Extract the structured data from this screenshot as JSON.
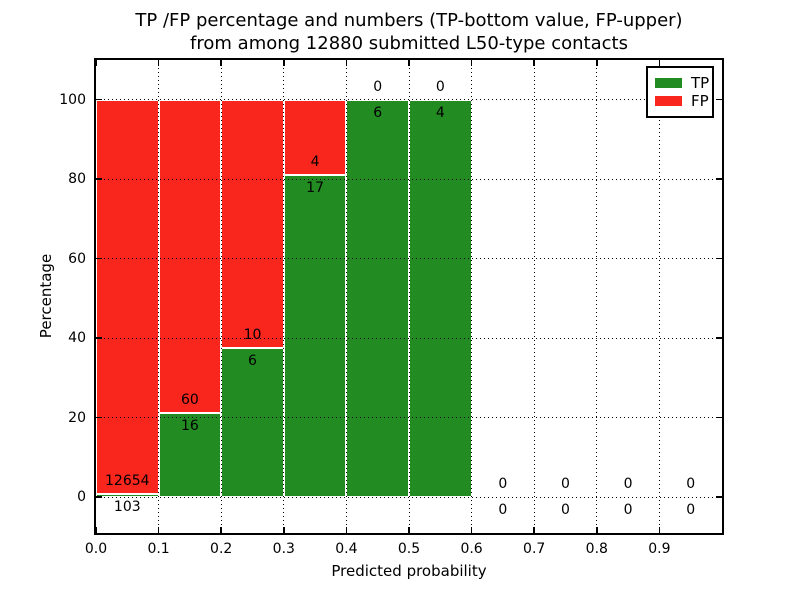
{
  "title": {
    "line1": "TP /FP percentage and numbers (TP-bottom value, FP-upper)",
    "line2": "from among 12880 submitted L50-type contacts"
  },
  "axes": {
    "xlabel": "Predicted probability",
    "ylabel": "Percentage",
    "x_ticks": [
      {
        "label": "0.0",
        "v": 0.0
      },
      {
        "label": "0.1",
        "v": 0.1
      },
      {
        "label": "0.2",
        "v": 0.2
      },
      {
        "label": "0.3",
        "v": 0.3
      },
      {
        "label": "0.4",
        "v": 0.4
      },
      {
        "label": "0.5",
        "v": 0.5
      },
      {
        "label": "0.6",
        "v": 0.6
      },
      {
        "label": "0.7",
        "v": 0.7
      },
      {
        "label": "0.8",
        "v": 0.8
      },
      {
        "label": "0.9",
        "v": 0.9
      }
    ],
    "y_ticks": [
      {
        "label": "0",
        "v": 0
      },
      {
        "label": "20",
        "v": 20
      },
      {
        "label": "40",
        "v": 40
      },
      {
        "label": "60",
        "v": 60
      },
      {
        "label": "80",
        "v": 80
      },
      {
        "label": "100",
        "v": 100
      }
    ]
  },
  "colors": {
    "tp": "#228b22",
    "fp": "#f9261d",
    "grid": "#000000",
    "frame": "#000000",
    "background": "#ffffff"
  },
  "legend": {
    "items": [
      {
        "label": "TP",
        "color": "#228b22"
      },
      {
        "label": "FP",
        "color": "#f9261d"
      }
    ],
    "position": "upper right"
  },
  "chart_data": {
    "type": "bar",
    "stacked": true,
    "title": "TP /FP percentage and numbers (TP-bottom value, FP-upper) from among 12880 submitted L50-type contacts",
    "xlabel": "Predicted probability",
    "ylabel": "Percentage",
    "xlim": [
      0.0,
      1.0
    ],
    "ylim": [
      -9,
      110
    ],
    "grid": true,
    "legend_position": "upper right",
    "total_submitted": 12880,
    "bin_width": 0.1,
    "bins": [
      {
        "x0": 0.0,
        "x1": 0.1,
        "tp_count": 103,
        "fp_count": 12654,
        "tp_pct": 0.8,
        "fp_pct": 99.2
      },
      {
        "x0": 0.1,
        "x1": 0.2,
        "tp_count": 16,
        "fp_count": 60,
        "tp_pct": 21.1,
        "fp_pct": 78.9
      },
      {
        "x0": 0.2,
        "x1": 0.3,
        "tp_count": 6,
        "fp_count": 10,
        "tp_pct": 37.5,
        "fp_pct": 62.5
      },
      {
        "x0": 0.3,
        "x1": 0.4,
        "tp_count": 17,
        "fp_count": 4,
        "tp_pct": 81.0,
        "fp_pct": 19.0
      },
      {
        "x0": 0.4,
        "x1": 0.5,
        "tp_count": 6,
        "fp_count": 0,
        "tp_pct": 100,
        "fp_pct": 0
      },
      {
        "x0": 0.5,
        "x1": 0.6,
        "tp_count": 4,
        "fp_count": 0,
        "tp_pct": 100,
        "fp_pct": 0
      },
      {
        "x0": 0.6,
        "x1": 0.7,
        "tp_count": 0,
        "fp_count": 0,
        "tp_pct": 0,
        "fp_pct": 0
      },
      {
        "x0": 0.7,
        "x1": 0.8,
        "tp_count": 0,
        "fp_count": 0,
        "tp_pct": 0,
        "fp_pct": 0
      },
      {
        "x0": 0.8,
        "x1": 0.9,
        "tp_count": 0,
        "fp_count": 0,
        "tp_pct": 0,
        "fp_pct": 0
      },
      {
        "x0": 0.9,
        "x1": 1.0,
        "tp_count": 0,
        "fp_count": 0,
        "tp_pct": 0,
        "fp_pct": 0
      }
    ]
  }
}
